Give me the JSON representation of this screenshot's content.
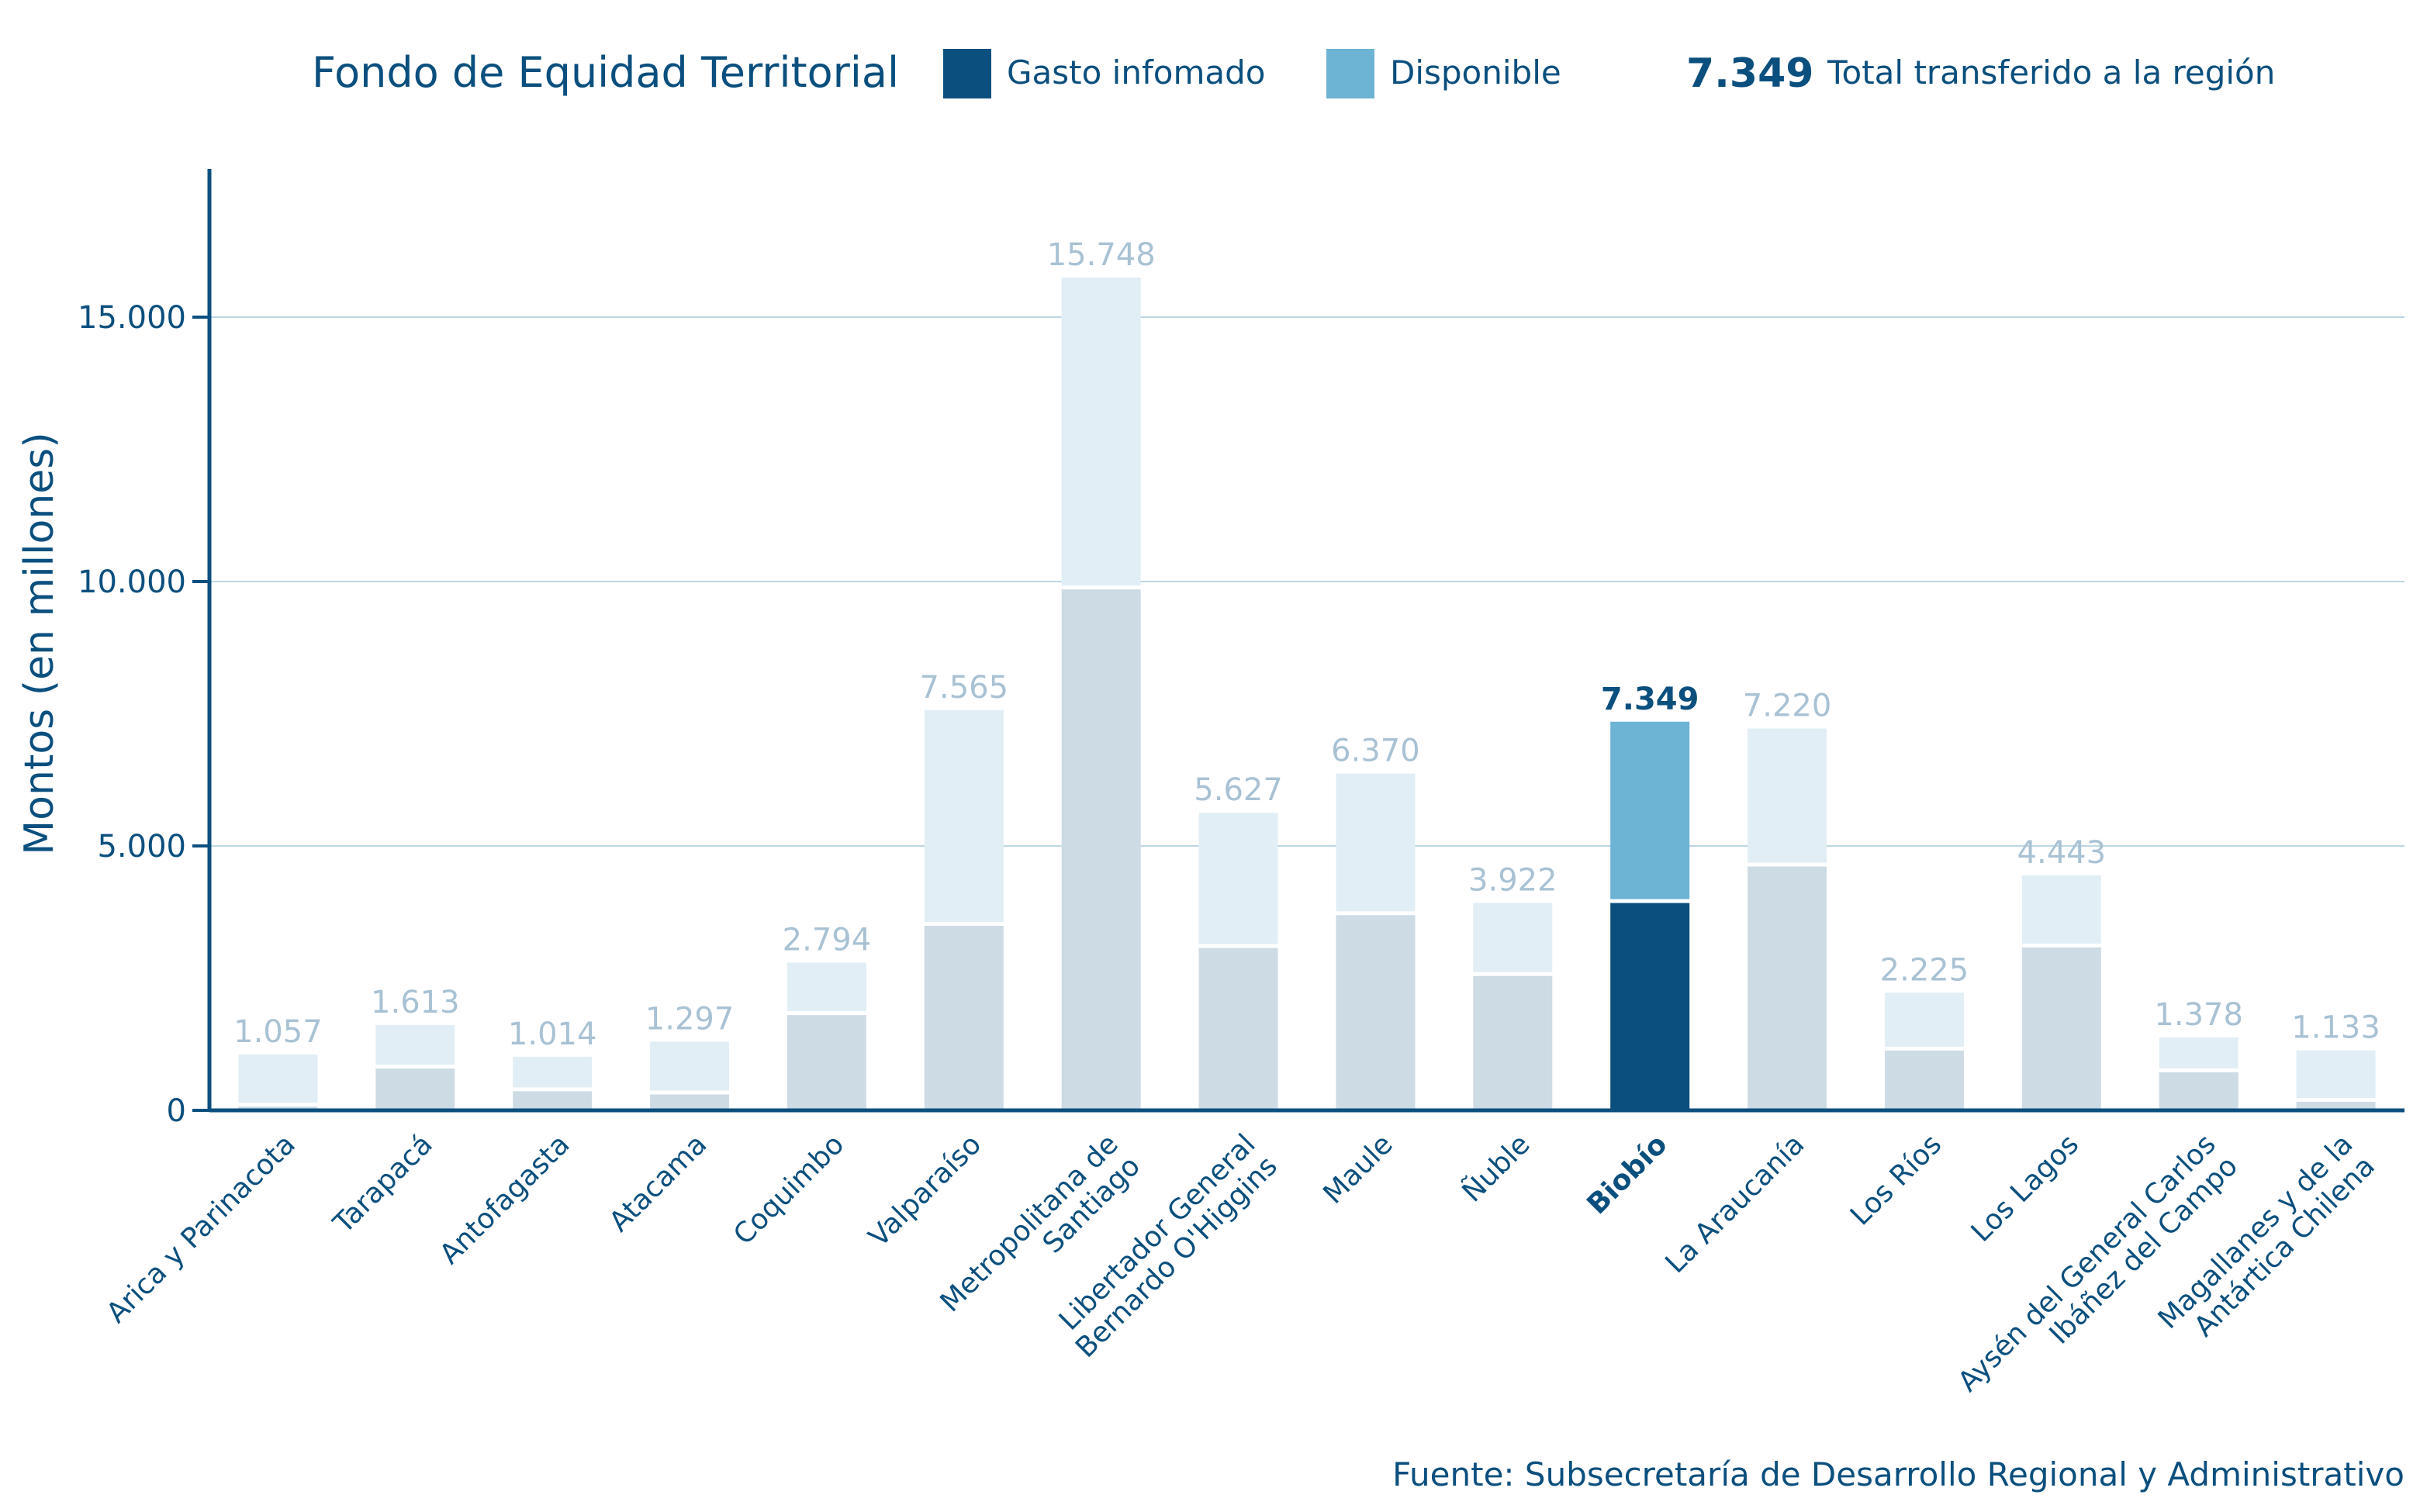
{
  "chart_data": {
    "type": "bar",
    "stacked": true,
    "title": "Fondo de Equidad Territorial",
    "highlight": {
      "value_label": "7.349",
      "description": "Total transferido a la región",
      "category": "Biobío"
    },
    "legend": [
      {
        "name": "Gasto infomado",
        "color": "#0b4f7e"
      },
      {
        "name": "Disponible",
        "color": "#6cb3d4"
      }
    ],
    "colors": {
      "highlight_gasto": "#0b4f7e",
      "highlight_disponible": "#6cb3d4",
      "muted_gasto": "#cddbe5",
      "muted_disponible": "#e1eef5",
      "muted_label": "#a8c2d4",
      "axis": "#0b4f7e",
      "grid": "#bcd6e3"
    },
    "xlabel": "",
    "ylabel": "Montos (en millones)",
    "ylim": [
      0,
      17800
    ],
    "yticks": [
      0,
      5000,
      10000,
      15000
    ],
    "ytick_labels": [
      "0",
      "5.000",
      "10.000",
      "15.000"
    ],
    "grid": true,
    "categories": [
      "Arica y Parinacota",
      "Tarapacá",
      "Antofagasta",
      "Atacama",
      "Coquimbo",
      "Valparaíso",
      "Metropolitana de Santiago",
      "Libertador General Bernardo O'Higgins",
      "Maule",
      "Ñuble",
      "Biobío",
      "La Araucanía",
      "Los Ríos",
      "Los Lagos",
      "Aysén del General Carlos Ibáñez del Campo",
      "Magallanes y de la Antártica Chilena"
    ],
    "category_label_lines": [
      [
        "Arica y Parinacota"
      ],
      [
        "Tarapacá"
      ],
      [
        "Antofagasta"
      ],
      [
        "Atacama"
      ],
      [
        "Coquimbo"
      ],
      [
        "Valparaíso"
      ],
      [
        "Metropolitana de",
        "Santiago"
      ],
      [
        "Libertador General",
        "Bernardo O'Higgins"
      ],
      [
        "Maule"
      ],
      [
        "Ñuble"
      ],
      [
        "Biobío"
      ],
      [
        "La Araucanía"
      ],
      [
        "Los Ríos"
      ],
      [
        "Los Lagos"
      ],
      [
        "Aysén del General Carlos",
        "Ibáñez del Campo"
      ],
      [
        "Magallanes y de la",
        "Antártica Chilena"
      ]
    ],
    "totals": [
      1057,
      1613,
      1014,
      1297,
      2794,
      7565,
      15748,
      5627,
      6370,
      3922,
      7349,
      7220,
      2225,
      4443,
      1378,
      1133
    ],
    "total_labels": [
      "1.057",
      "1.613",
      "1.014",
      "1.297",
      "2.794",
      "7.565",
      "15.748",
      "5.627",
      "6.370",
      "3.922",
      "7.349",
      "7.220",
      "2.225",
      "4.443",
      "1.378",
      "1.133"
    ],
    "series": [
      {
        "name": "Gasto infomado",
        "values": [
          100,
          820,
          390,
          330,
          1830,
          3520,
          9880,
          3100,
          3720,
          2570,
          3950,
          4640,
          1160,
          3110,
          750,
          190
        ]
      },
      {
        "name": "Disponible",
        "values": [
          957,
          793,
          624,
          967,
          964,
          4045,
          5868,
          2527,
          2650,
          1352,
          3399,
          2580,
          1065,
          1333,
          628,
          943
        ]
      }
    ],
    "source": "Fuente: Subsecretaría de Desarrollo Regional y Administrativo"
  }
}
